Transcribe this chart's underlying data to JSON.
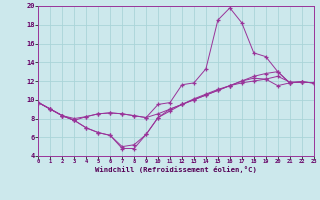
{
  "background_color": "#cce8ec",
  "grid_color": "#aad4d8",
  "line_color": "#993399",
  "xlabel": "Windchill (Refroidissement éolien,°C)",
  "xlim": [
    0,
    23
  ],
  "ylim": [
    4,
    20
  ],
  "yticks": [
    4,
    6,
    8,
    10,
    12,
    14,
    16,
    18,
    20
  ],
  "xticks": [
    0,
    1,
    2,
    3,
    4,
    5,
    6,
    7,
    8,
    9,
    10,
    11,
    12,
    13,
    14,
    15,
    16,
    17,
    18,
    19,
    20,
    21,
    22,
    23
  ],
  "series": [
    [
      9.7,
      9.0,
      8.3,
      8.0,
      8.2,
      8.5,
      8.6,
      8.5,
      8.3,
      8.1,
      9.5,
      9.7,
      11.6,
      11.8,
      13.3,
      18.5,
      19.8,
      18.2,
      15.0,
      14.6,
      13.0,
      11.8,
      11.9,
      11.8
    ],
    [
      9.7,
      9.0,
      8.3,
      7.8,
      7.0,
      6.5,
      6.2,
      4.8,
      4.8,
      6.3,
      8.1,
      8.8,
      9.5,
      10.1,
      10.6,
      11.1,
      11.5,
      11.8,
      12.0,
      12.2,
      12.5,
      11.9,
      11.9,
      11.8
    ],
    [
      9.7,
      9.0,
      8.3,
      7.8,
      8.2,
      8.5,
      8.6,
      8.5,
      8.3,
      8.1,
      8.5,
      9.0,
      9.5,
      10.0,
      10.5,
      11.0,
      11.5,
      12.0,
      12.5,
      12.8,
      13.0,
      11.8,
      11.9,
      11.8
    ],
    [
      9.7,
      9.0,
      8.3,
      7.8,
      7.0,
      6.5,
      6.2,
      5.0,
      5.2,
      6.3,
      8.1,
      9.0,
      9.5,
      10.0,
      10.5,
      11.0,
      11.5,
      12.0,
      12.3,
      12.2,
      11.5,
      11.8,
      11.9,
      11.8
    ]
  ],
  "figsize": [
    3.2,
    2.0
  ],
  "dpi": 100
}
